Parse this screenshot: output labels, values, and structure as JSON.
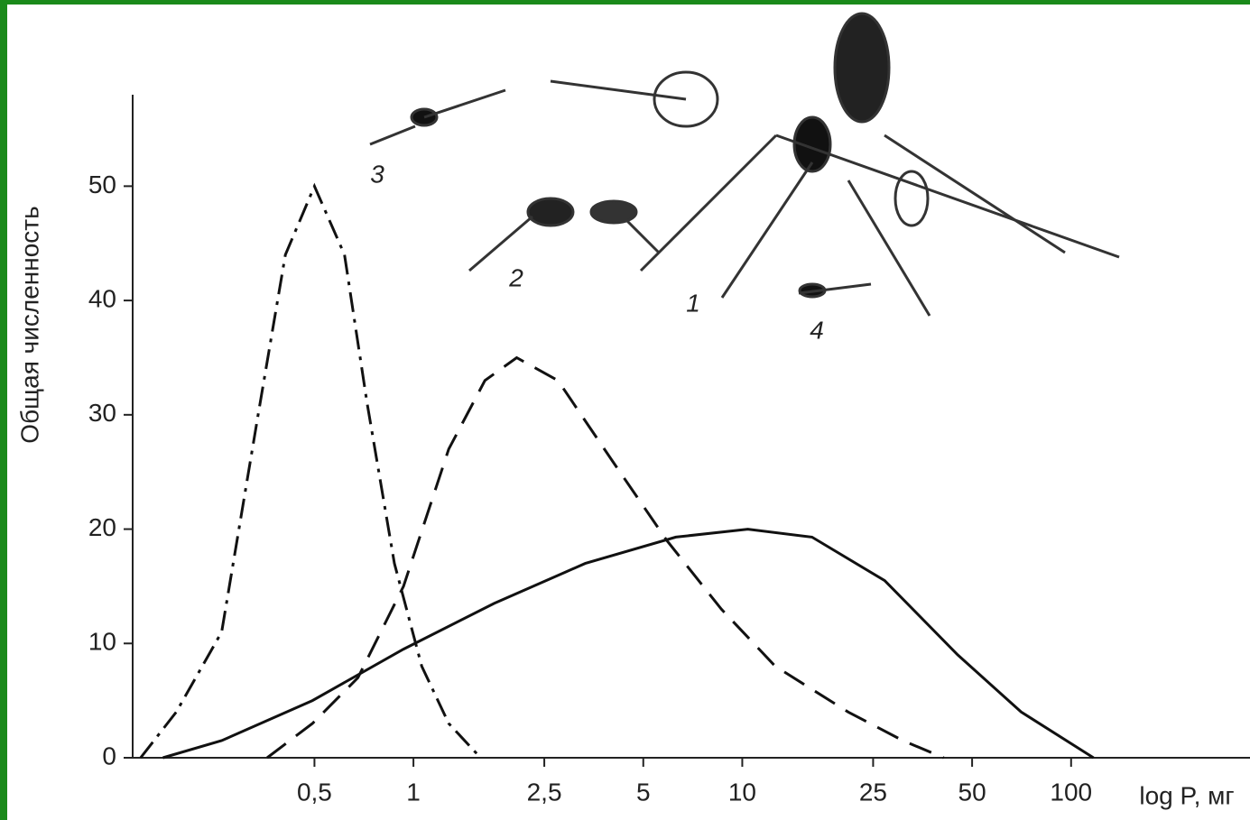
{
  "chart_data": {
    "type": "line",
    "y_label": "Общая численность",
    "x_label": "log P, мг",
    "log_x": true,
    "xlim": [
      0.14,
      350
    ],
    "xticks": [
      {
        "value": 0.5,
        "label": "0,5"
      },
      1,
      {
        "value": 2.5,
        "label": "2,5"
      },
      5,
      10,
      25,
      50,
      100
    ],
    "ylim": [
      0,
      58
    ],
    "yticks": [
      0,
      10,
      20,
      30,
      40,
      50
    ],
    "series": [
      {
        "color": "#111111",
        "dash": "dash-dot",
        "x": [
          0.148,
          0.19,
          0.261,
          0.337,
          0.408,
          0.5,
          0.617,
          0.723,
          0.875,
          1.06,
          1.28,
          1.6
        ],
        "values": [
          0,
          4,
          11,
          30,
          44,
          50,
          44,
          31,
          17,
          8,
          3,
          0
        ]
      },
      {
        "color": "#111111",
        "dash": "dashed",
        "x": [
          0.359,
          0.493,
          0.678,
          0.933,
          1.28,
          1.65,
          2.06,
          2.75,
          4.02,
          5.9,
          8.64,
          12.6,
          21.0,
          30.8,
          41.0
        ],
        "values": [
          0,
          3,
          7,
          15,
          27,
          33,
          35,
          33,
          26,
          19,
          13,
          8,
          4,
          1.5,
          0
        ]
      },
      {
        "color": "#111111",
        "dash": "solid",
        "x": [
          0.173,
          0.261,
          0.493,
          0.933,
          1.76,
          3.33,
          6.28,
          10.4,
          16.3,
          27.1,
          45.2,
          70.5,
          117
        ],
        "values": [
          0,
          1.5,
          5,
          9.5,
          13.5,
          17,
          19.3,
          20,
          19.3,
          15.5,
          9,
          4,
          0
        ]
      }
    ],
    "annotations": [
      "3",
      "2",
      "1",
      "4"
    ]
  }
}
